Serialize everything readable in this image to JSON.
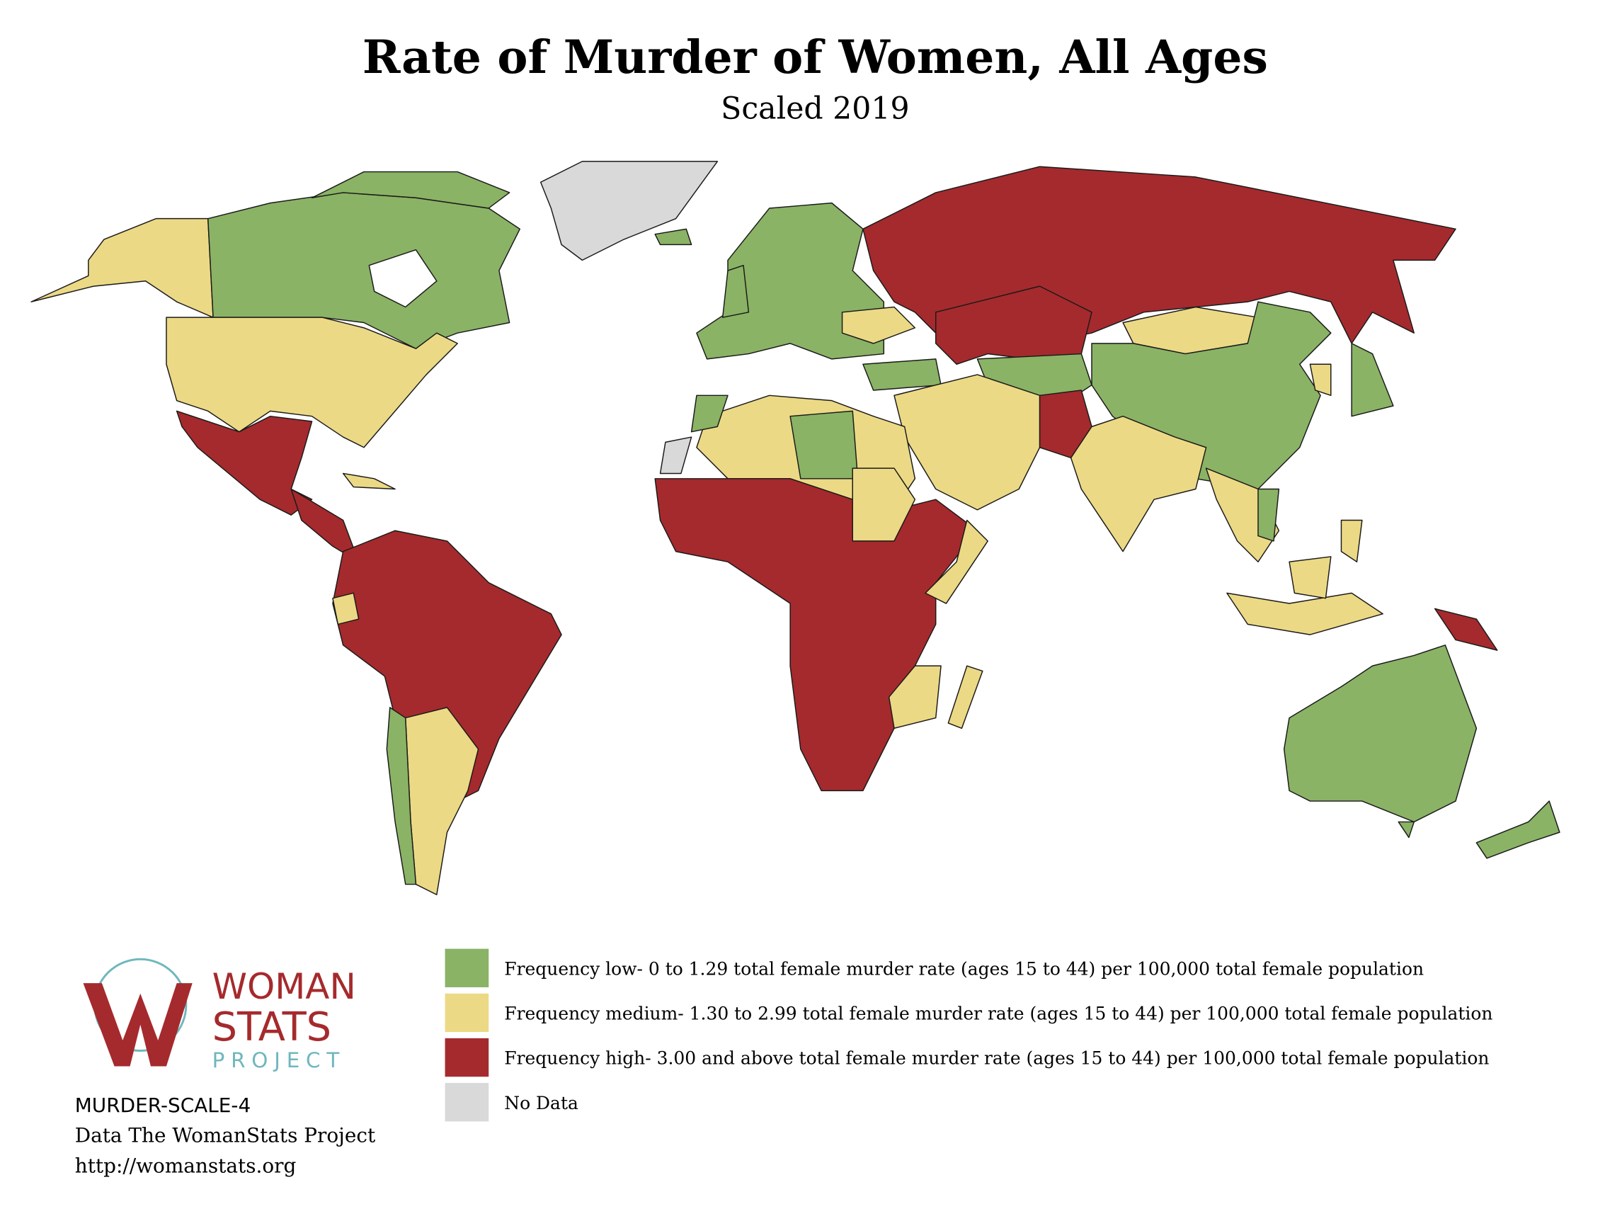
{
  "header": {
    "title": "Rate of Murder of Women, All Ages",
    "subtitle": "Scaled 2019"
  },
  "legend": [
    {
      "label": "Frequency low- 0 to 1.29 total female murder rate (ages 15 to 44) per 100,000 total female population",
      "color": "#8ab365"
    },
    {
      "label": "Frequency medium- 1.30 to 2.99 total female murder rate (ages 15 to 44) per 100,000 total female population",
      "color": "#ecd985"
    },
    {
      "label": "Frequency high- 3.00 and above total female murder rate (ages 15 to 44) per 100,000 total female population",
      "color": "#a52a2d"
    },
    {
      "label": "No Data",
      "color": "#d9d9d9"
    }
  ],
  "logo": {
    "line1": "WOMAN",
    "line2": "STATS",
    "line3": "PROJECT"
  },
  "footer": {
    "code": "MURDER-SCALE-4",
    "source": "Data The WomanStats Project",
    "url": "http://womanstats.org"
  }
}
